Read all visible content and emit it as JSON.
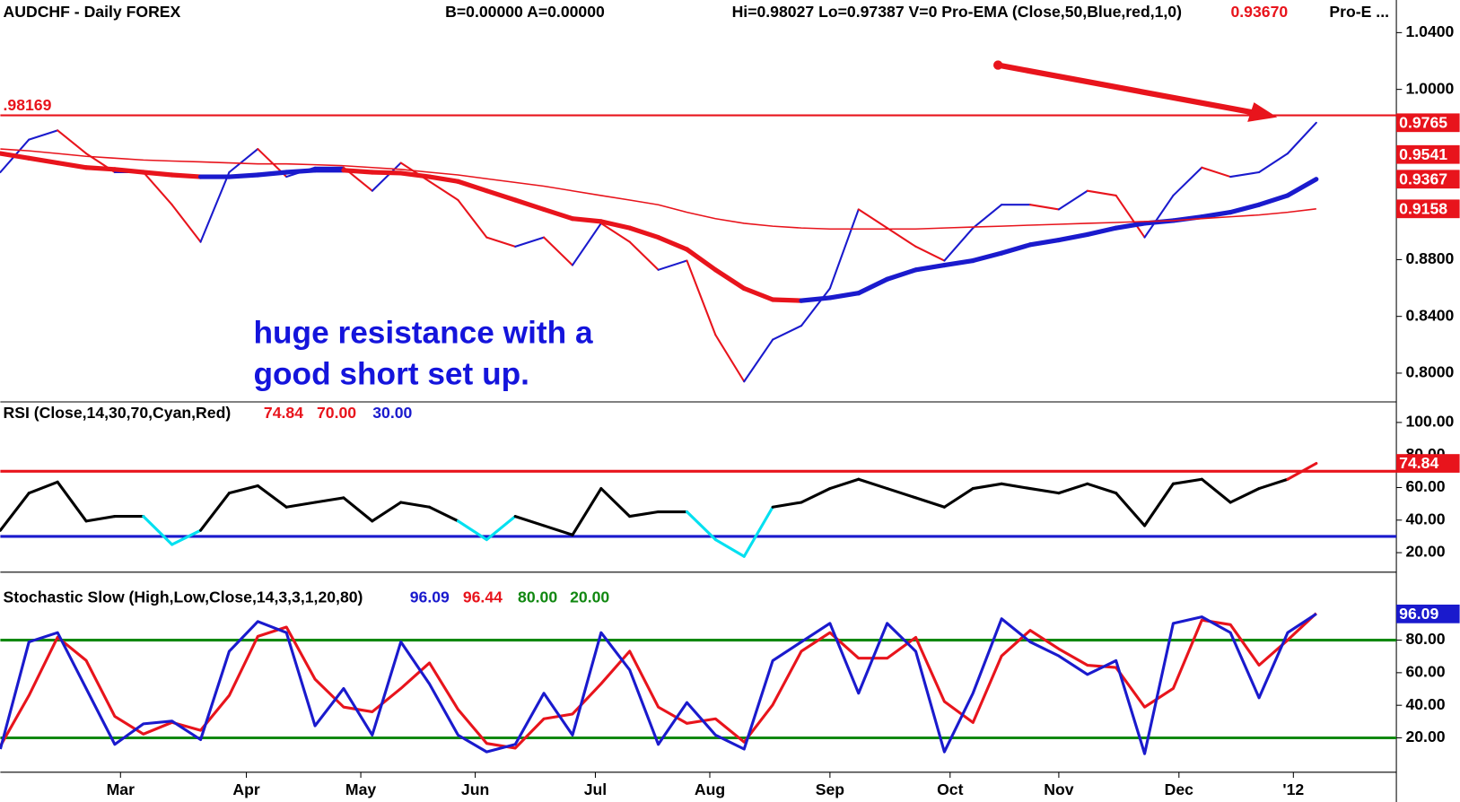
{
  "chart_data": [
    {
      "type": "line",
      "title": "AUDCHF - Daily  FOREX",
      "bid_ask": "B=0.00000  A=0.00000",
      "info": "Hi=0.98027  Lo=0.97387  V=0  Pro-EMA (Close,50,Blue,red,1,0)",
      "readout": {
        "value": 0.9367,
        "label": "0.93670",
        "color": "#e8141c"
      },
      "more": "Pro-E ...",
      "annotation": [
        "huge resistance with a",
        "good short set up."
      ],
      "annotation_color": "#1414dc",
      "hline": {
        "value": 0.98169,
        "label": ".98169",
        "color": "#e8141c"
      },
      "markers": [
        0.9541
      ],
      "marker_color": "#e8141c",
      "x": [
        0,
        5,
        10,
        15,
        20,
        25,
        30,
        35,
        40,
        45,
        50,
        55,
        60,
        65,
        70,
        75,
        80,
        85,
        90,
        95,
        100,
        105,
        110,
        115,
        120,
        125,
        130,
        135,
        140,
        145,
        150,
        155,
        160,
        165,
        170,
        175,
        180,
        185,
        190,
        195,
        200,
        205,
        210,
        215,
        220,
        225,
        230
      ],
      "xlim": [
        0,
        244
      ],
      "ylim": [
        0.7797,
        1.063
      ],
      "yticks": [
        {
          "value": 1.04,
          "label": "1.0400"
        },
        {
          "value": 1.0,
          "label": "1.0000"
        },
        {
          "value": 0.88,
          "label": "0.8800"
        },
        {
          "value": 0.84,
          "label": "0.8400"
        },
        {
          "value": 0.8,
          "label": "0.8000"
        }
      ],
      "series": [
        {
          "up_color": "#1a1acd",
          "down_color": "#e8141c",
          "values": [
            0.9416,
            0.9646,
            0.9711,
            0.9548,
            0.9416,
            0.9416,
            0.9187,
            0.8925,
            0.9416,
            0.958,
            0.9384,
            0.9449,
            0.9449,
            0.9285,
            0.9482,
            0.9351,
            0.922,
            0.8957,
            0.8892,
            0.8957,
            0.8761,
            0.9056,
            0.8925,
            0.8728,
            0.8793,
            0.8269,
            0.7941,
            0.8236,
            0.8334,
            0.8597,
            0.9154,
            0.9023,
            0.8892,
            0.8793,
            0.9023,
            0.9187,
            0.9187,
            0.9154,
            0.9285,
            0.9252,
            0.8957,
            0.9252,
            0.9449,
            0.9384,
            0.9416,
            0.9548,
            0.9765
          ]
        },
        {
          "up_color": "#1a1acd",
          "down_color": "#e8141c",
          "values": [
            0.9548,
            0.9515,
            0.9482,
            0.9449,
            0.9436,
            0.9416,
            0.9397,
            0.9384,
            0.9384,
            0.9397,
            0.9416,
            0.943,
            0.943,
            0.9416,
            0.941,
            0.9384,
            0.9351,
            0.9285,
            0.922,
            0.9154,
            0.9089,
            0.9069,
            0.9023,
            0.8957,
            0.8872,
            0.8728,
            0.8597,
            0.8518,
            0.8511,
            0.8531,
            0.8564,
            0.8662,
            0.8728,
            0.8761,
            0.8793,
            0.8846,
            0.8905,
            0.8938,
            0.8977,
            0.9023,
            0.9056,
            0.9075,
            0.9102,
            0.9134,
            0.9187,
            0.9252,
            0.9367
          ]
        },
        {
          "color": "#e8141c",
          "values": [
            0.958,
            0.9567,
            0.9548,
            0.9528,
            0.9515,
            0.9502,
            0.9495,
            0.9489,
            0.9482,
            0.9475,
            0.9475,
            0.9469,
            0.9462,
            0.9449,
            0.9436,
            0.9416,
            0.9397,
            0.937,
            0.9344,
            0.9318,
            0.9285,
            0.9252,
            0.922,
            0.9187,
            0.9134,
            0.9089,
            0.9056,
            0.9036,
            0.9023,
            0.9016,
            0.9016,
            0.9016,
            0.9016,
            0.9023,
            0.903,
            0.9036,
            0.9043,
            0.9049,
            0.9056,
            0.9062,
            0.9069,
            0.9075,
            0.9089,
            0.9102,
            0.9115,
            0.9134,
            0.9158
          ]
        }
      ]
    },
    {
      "type": "line",
      "title": "RSI (Close,14,30,70,Cyan,Red)",
      "levels": [
        {
          "value": 70,
          "label": "70.00",
          "color": "#e8141c"
        },
        {
          "value": 30,
          "label": "30.00",
          "color": "#1a1acd"
        }
      ],
      "x": [
        0,
        5,
        10,
        15,
        20,
        25,
        30,
        35,
        40,
        45,
        50,
        55,
        60,
        65,
        70,
        75,
        80,
        85,
        90,
        95,
        100,
        105,
        110,
        115,
        120,
        125,
        130,
        135,
        140,
        145,
        150,
        155,
        160,
        165,
        170,
        175,
        180,
        185,
        190,
        195,
        200,
        205,
        210,
        215,
        220,
        225,
        230
      ],
      "xlim": [
        0,
        244
      ],
      "ylim": [
        8,
        112.6
      ],
      "yticks": [
        {
          "value": 100,
          "label": "100.00"
        },
        {
          "value": 80,
          "label": "80.00"
        },
        {
          "value": 60,
          "label": "60.00"
        },
        {
          "value": 40,
          "label": "40.00"
        },
        {
          "value": 20,
          "label": "20.00"
        }
      ],
      "series": [
        {
          "color": "#000000",
          "above_color": "#e8141c",
          "below_color": "#00e0f0",
          "values": [
            33.7,
            56.6,
            63.4,
            39.4,
            42.3,
            42.3,
            25,
            33.7,
            56.6,
            61.1,
            48,
            50.9,
            53.7,
            39.4,
            50.9,
            48,
            39.4,
            28,
            42.3,
            36.6,
            30.9,
            59.4,
            42.3,
            45.1,
            45.1,
            28,
            17.7,
            48,
            50.9,
            59.4,
            65.1,
            59.4,
            53.7,
            48,
            59.4,
            62.3,
            59.4,
            56.6,
            62.3,
            56.6,
            36.6,
            62.3,
            65.1,
            50.9,
            59.4,
            65.1,
            74.84
          ]
        }
      ]
    },
    {
      "type": "line",
      "title": "Stochastic Slow (High,Low,Close,14,3,3,1,20,80)",
      "levels": [
        {
          "value": 80,
          "label": "80.00",
          "color": "#118811"
        },
        {
          "value": 20,
          "label": "20.00",
          "color": "#118811"
        }
      ],
      "x": [
        0,
        5,
        10,
        15,
        20,
        25,
        30,
        35,
        40,
        45,
        50,
        55,
        60,
        65,
        70,
        75,
        80,
        85,
        90,
        95,
        100,
        105,
        110,
        115,
        120,
        125,
        130,
        135,
        140,
        145,
        150,
        155,
        160,
        165,
        170,
        175,
        180,
        185,
        190,
        195,
        200,
        205,
        210,
        215,
        220,
        225,
        230
      ],
      "xlim": [
        0,
        244
      ],
      "ylim": [
        -1.1,
        121.7
      ],
      "yticks": [
        {
          "value": 80,
          "label": "80.00"
        },
        {
          "value": 60,
          "label": "60.00"
        },
        {
          "value": 40,
          "label": "40.00"
        },
        {
          "value": 20,
          "label": "20.00"
        }
      ],
      "xticks": [
        {
          "value": 21,
          "label": "Mar"
        },
        {
          "value": 43,
          "label": "Apr"
        },
        {
          "value": 63,
          "label": "May"
        },
        {
          "value": 83,
          "label": "Jun"
        },
        {
          "value": 104,
          "label": "Jul"
        },
        {
          "value": 124,
          "label": "Aug"
        },
        {
          "value": 145,
          "label": "Sep"
        },
        {
          "value": 166,
          "label": "Oct"
        },
        {
          "value": 185,
          "label": "Nov"
        },
        {
          "value": 206,
          "label": "Dec"
        },
        {
          "value": 226,
          "label": "'12"
        }
      ],
      "series": [
        {
          "color": "#e8141c",
          "values": [
            15,
            46,
            81.8,
            67.5,
            33.2,
            22.3,
            29.5,
            24.6,
            46,
            82.3,
            88,
            56,
            38.9,
            36,
            50.3,
            66,
            37.4,
            16.6,
            13.7,
            31.7,
            34.6,
            53.2,
            73.2,
            38.9,
            28.9,
            31.7,
            17.4,
            40.3,
            73.2,
            84.6,
            68.9,
            68.9,
            81.7,
            42.3,
            29.4,
            70.3,
            86,
            74.6,
            64.6,
            63.2,
            38.9,
            50.3,
            92.3,
            89.5,
            64.6,
            80,
            96.44
          ]
        },
        {
          "color": "#1a1acd",
          "values": [
            13.1,
            78.9,
            84.6,
            50.3,
            16,
            28.6,
            30.3,
            18.9,
            73.1,
            91.4,
            84.6,
            27.4,
            50.3,
            21.7,
            78.9,
            53.1,
            21.7,
            11.4,
            16,
            47.4,
            21.7,
            84.6,
            61.7,
            16,
            41.7,
            21.7,
            13.1,
            67.4,
            78.9,
            90.3,
            47.4,
            90.3,
            73.1,
            11.4,
            47.4,
            93.1,
            78.9,
            70.3,
            58.9,
            67.4,
            10.3,
            90.3,
            94.3,
            84.6,
            44.6,
            84.6,
            96.09
          ]
        }
      ]
    }
  ]
}
